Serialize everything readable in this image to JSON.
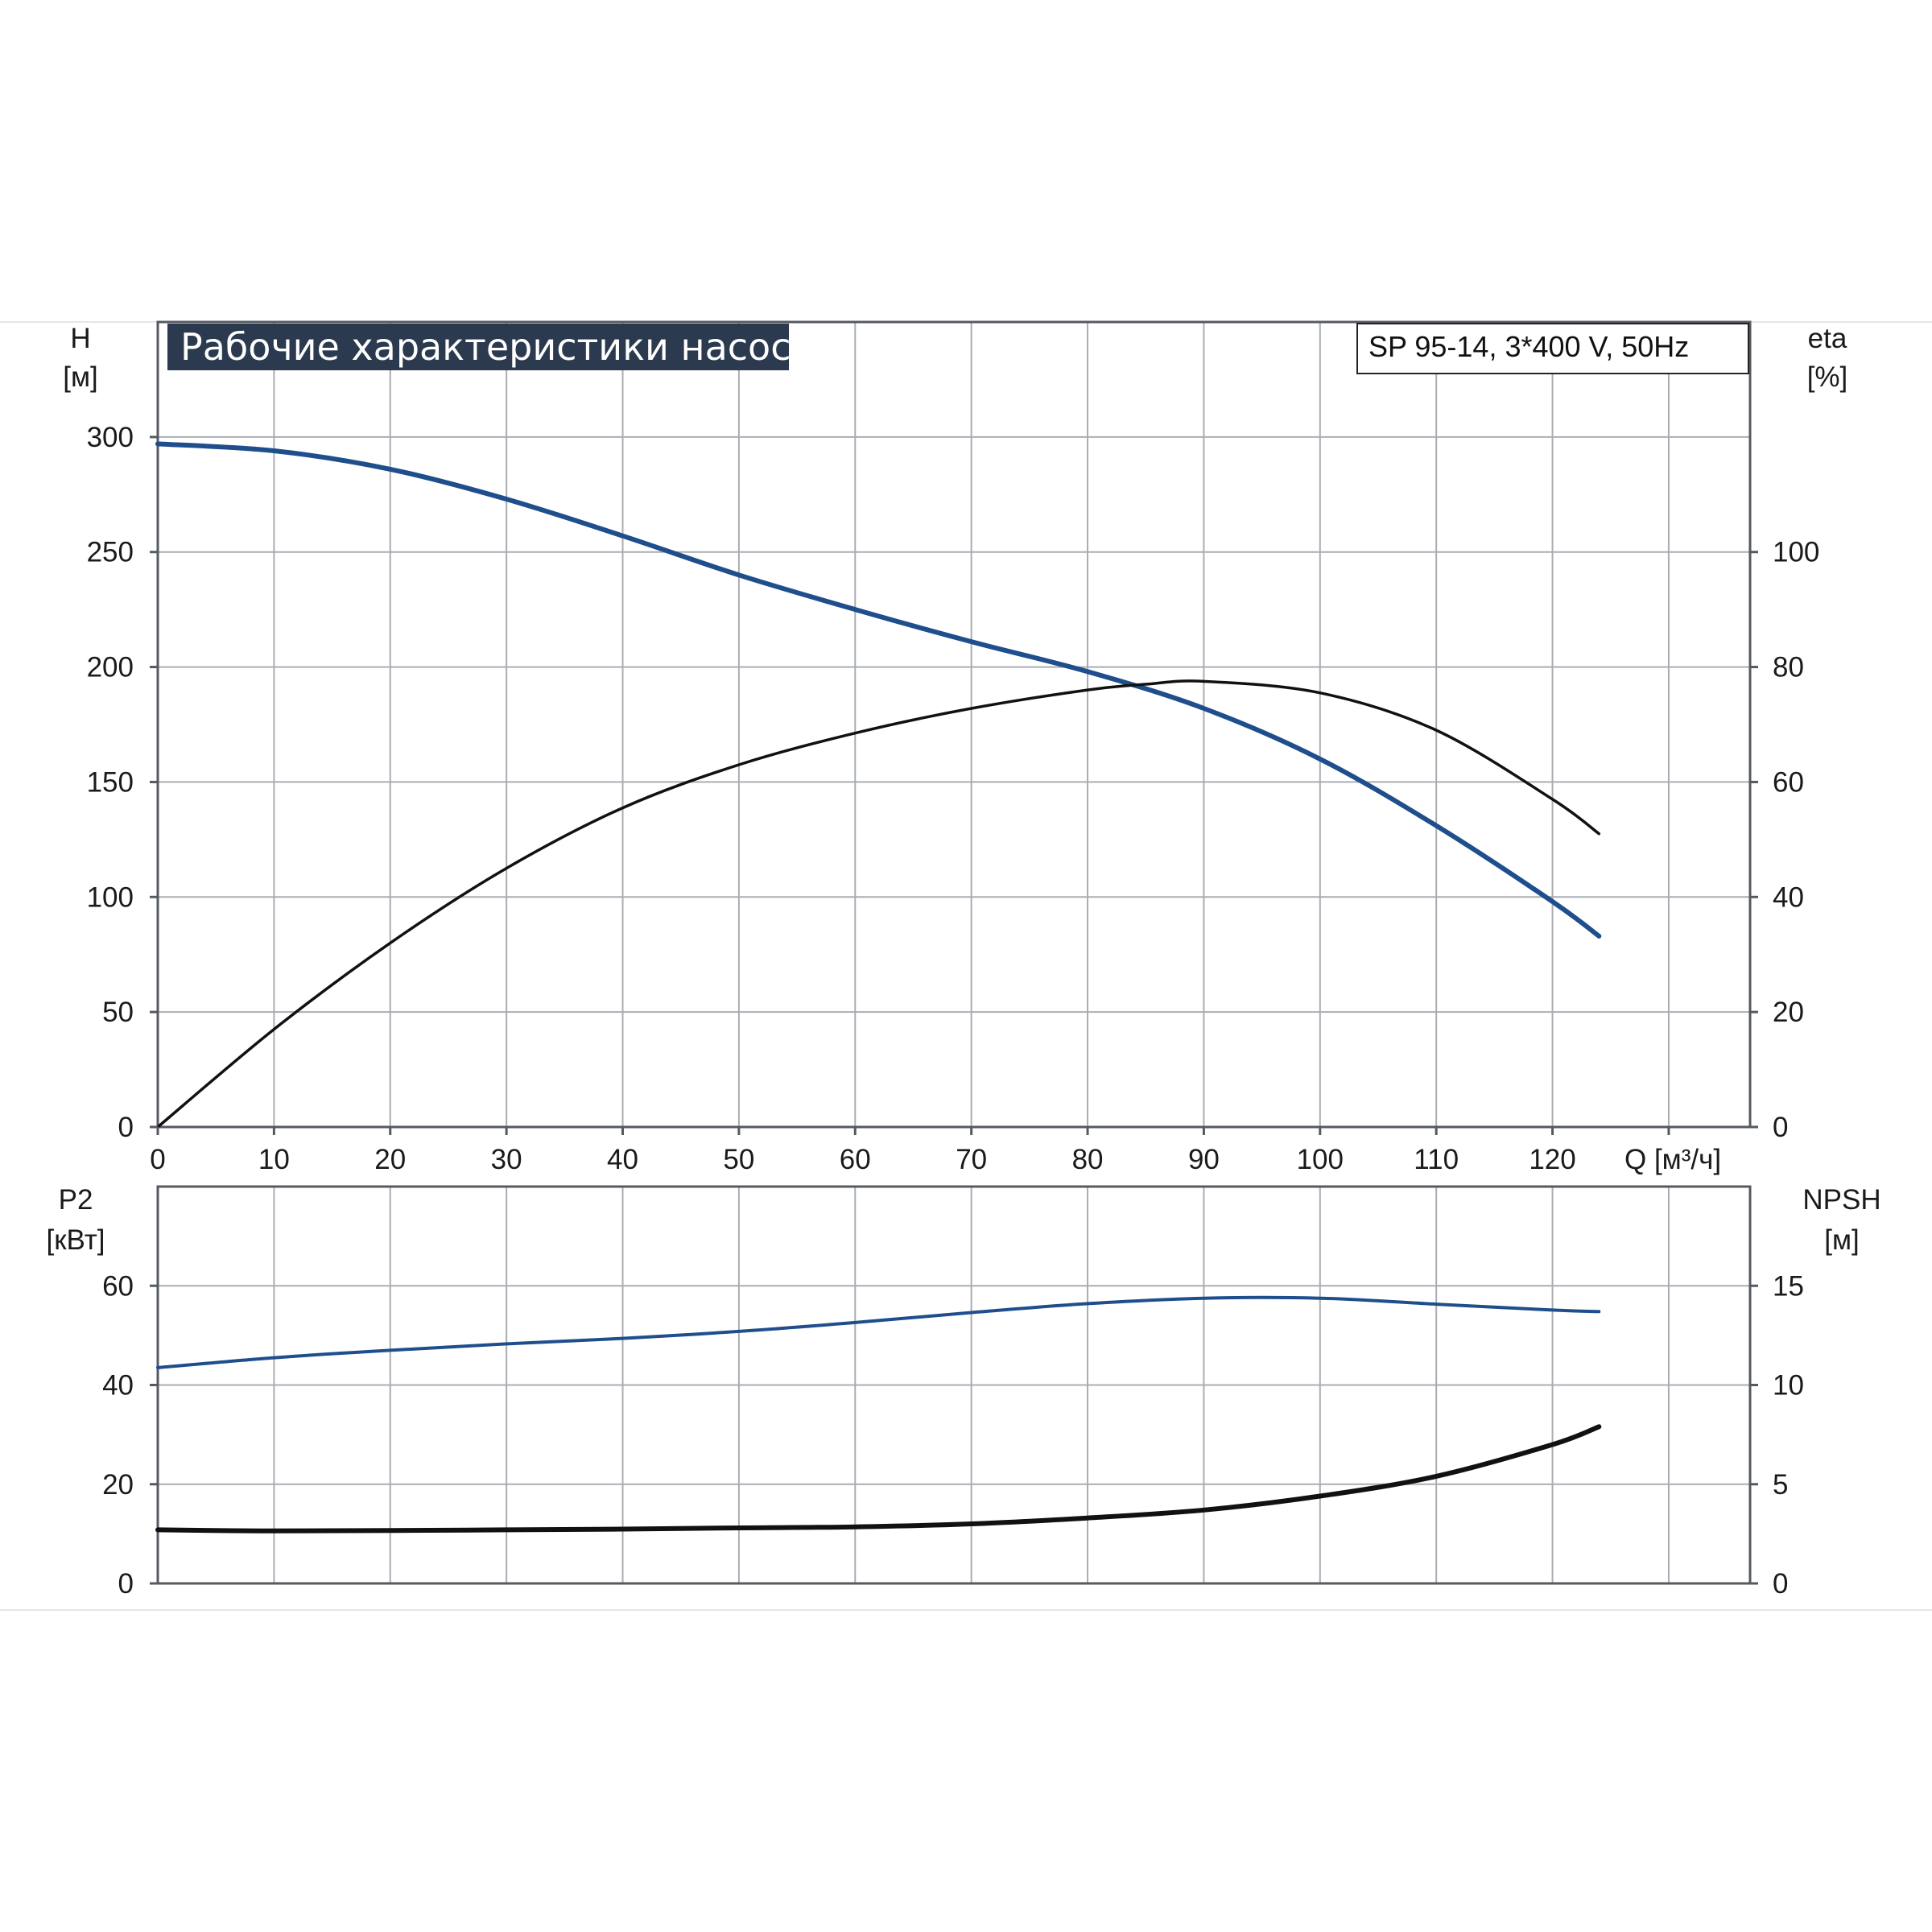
{
  "title": "Рабочие характеристики насоса",
  "pump_label": "SP 95-14, 3*400 V, 50Hz",
  "colors": {
    "title_bg": "#2b3a4f",
    "blue_curve": "#1f4e8c",
    "black_curve": "#111111",
    "grid": "#a9adb3"
  },
  "chart_data": [
    {
      "type": "line",
      "panel": "top",
      "xlabel": "Q [м³/ч]",
      "xlim": [
        0,
        137
      ],
      "x_ticks": [
        "0",
        "10",
        "20",
        "30",
        "40",
        "50",
        "60",
        "70",
        "80",
        "90",
        "100",
        "110",
        "120"
      ],
      "ylabel_left": [
        "H",
        "[м]"
      ],
      "ylim_left": [
        0,
        350
      ],
      "y_ticks_left": [
        "0",
        "50",
        "100",
        "150",
        "200",
        "250",
        "300"
      ],
      "ylabel_right": [
        "eta",
        "[%]"
      ],
      "ylim_right": [
        0,
        140
      ],
      "y_ticks_right": [
        "0",
        "20",
        "40",
        "60",
        "80",
        "100"
      ],
      "grid": true,
      "series": [
        {
          "axis": "left",
          "color": "blue",
          "points": [
            [
              0,
              297
            ],
            [
              10,
              294
            ],
            [
              20,
              286
            ],
            [
              30,
              273
            ],
            [
              40,
              257
            ],
            [
              50,
              240
            ],
            [
              60,
              225
            ],
            [
              70,
              211
            ],
            [
              80,
              198
            ],
            [
              90,
              182
            ],
            [
              100,
              160
            ],
            [
              110,
              131
            ],
            [
              120,
              98
            ],
            [
              124,
              83
            ]
          ]
        },
        {
          "axis": "right",
          "color": "black",
          "points": [
            [
              0,
              0
            ],
            [
              10,
              17
            ],
            [
              20,
              32
            ],
            [
              30,
              45
            ],
            [
              40,
              55.5
            ],
            [
              50,
              63
            ],
            [
              60,
              68.5
            ],
            [
              70,
              72.8
            ],
            [
              80,
              76
            ],
            [
              85,
              77
            ],
            [
              90,
              77.5
            ],
            [
              100,
              75.5
            ],
            [
              110,
              69
            ],
            [
              120,
              57
            ],
            [
              124,
              51
            ]
          ]
        }
      ]
    },
    {
      "type": "line",
      "panel": "bottom",
      "xlim": [
        0,
        137
      ],
      "ylabel_left": [
        "P2",
        "[кВт]"
      ],
      "ylim_left": [
        0,
        80
      ],
      "y_ticks_left": [
        "0",
        "20",
        "40",
        "60"
      ],
      "ylabel_right": [
        "NPSH",
        "[м]"
      ],
      "ylim_right": [
        0,
        20
      ],
      "y_ticks_right": [
        "0",
        "5",
        "10",
        "15"
      ],
      "grid": true,
      "series": [
        {
          "axis": "left",
          "color": "blue",
          "points": [
            [
              0,
              43.5
            ],
            [
              10,
              45.5
            ],
            [
              20,
              47
            ],
            [
              30,
              48.3
            ],
            [
              40,
              49.4
            ],
            [
              50,
              50.8
            ],
            [
              60,
              52.6
            ],
            [
              70,
              54.6
            ],
            [
              80,
              56.4
            ],
            [
              90,
              57.5
            ],
            [
              100,
              57.5
            ],
            [
              110,
              56.3
            ],
            [
              120,
              55.1
            ],
            [
              124,
              54.8
            ]
          ]
        },
        {
          "axis": "right",
          "color": "black",
          "points": [
            [
              0,
              2.7
            ],
            [
              9,
              2.65
            ],
            [
              20,
              2.67
            ],
            [
              30,
              2.7
            ],
            [
              40,
              2.74
            ],
            [
              50,
              2.8
            ],
            [
              60,
              2.85
            ],
            [
              70,
              3.0
            ],
            [
              80,
              3.3
            ],
            [
              90,
              3.7
            ],
            [
              100,
              4.4
            ],
            [
              110,
              5.4
            ],
            [
              120,
              7.0
            ],
            [
              124,
              7.9
            ]
          ]
        }
      ]
    }
  ]
}
